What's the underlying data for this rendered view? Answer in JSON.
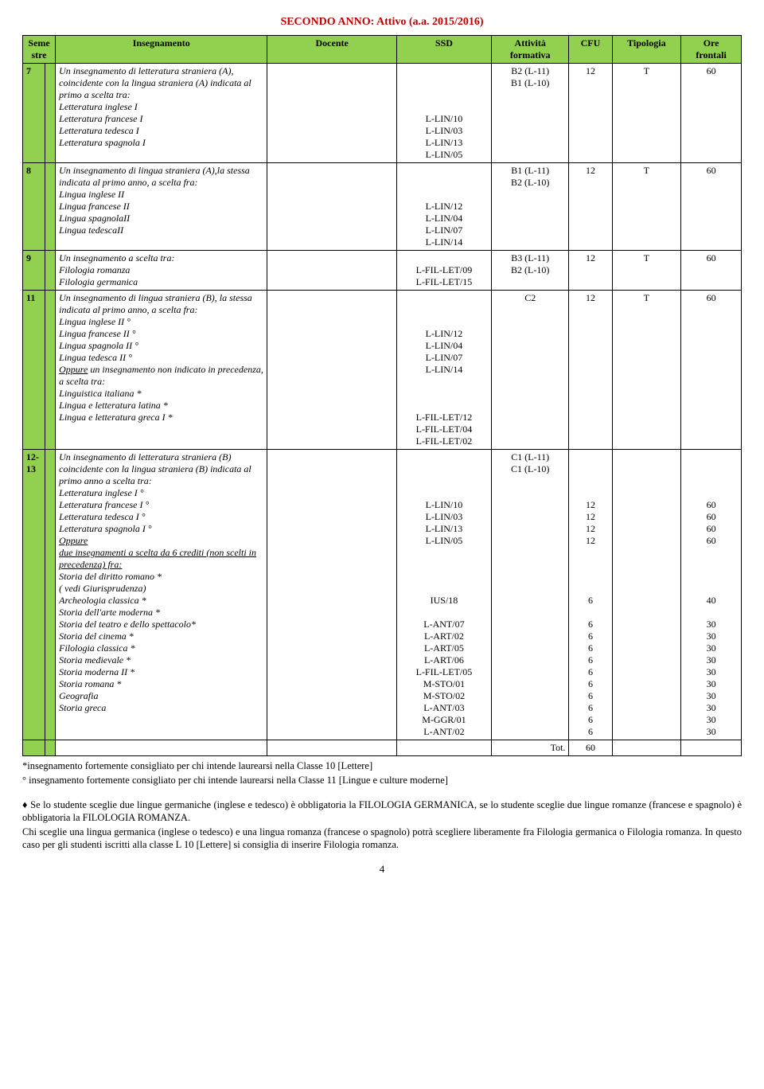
{
  "title": "SECONDO ANNO: Attivo (a.a. 2015/2016)",
  "headers": {
    "seme": "Seme\nstre",
    "insegnamento": "Insegnamento",
    "docente": "Docente",
    "ssd": "SSD",
    "attivita": "Attività\nformativa",
    "cfu": "CFU",
    "tipologia": "Tipologia",
    "ore": "Ore\nfrontali"
  },
  "rows": [
    {
      "idx": "7",
      "ins": "Un insegnamento di letteratura straniera (A), coincidente con la lingua straniera (A) indicata al primo a scelta tra:\nLetteratura inglese I\nLetteratura francese I\nLetteratura tedesca I\nLetteratura spagnola I",
      "ssd": "\n\n\n\nL-LIN/10\nL-LIN/03\nL-LIN/13\nL-LIN/05",
      "att": "B2 (L-11)\nB1 (L-10)",
      "cfu": "12",
      "tip": "T",
      "ore": "60"
    },
    {
      "idx": "8",
      "ins": "Un insegnamento di lingua straniera (A),la stessa indicata al primo anno, a scelta fra:\nLingua inglese II\nLingua francese II\nLingua spagnolaII\nLingua tedescaII",
      "ssd": "\n\n\nL-LIN/12\nL-LIN/04\nL-LIN/07\nL-LIN/14",
      "att": "B1 (L-11)\nB2 (L-10)",
      "cfu": "12",
      "tip": "T",
      "ore": "60"
    },
    {
      "idx": "9",
      "ins": "Un insegnamento a scelta tra:\nFilologia romanza\nFilologia germanica",
      "ssd": "\nL-FIL-LET/09\nL-FIL-LET/15",
      "att": "B3 (L-11)\nB2 (L-10)",
      "cfu": "12",
      "tip": "T",
      "ore": "60"
    },
    {
      "idx": "11",
      "ins": "Un insegnamento di lingua straniera (B), la stessa indicata al primo anno, a scelta fra:\nLingua inglese II °\nLingua francese II °\nLingua spagnola II °\nLingua tedesca II °\n<u>Oppure</u> un insegnamento non indicato in precedenza, a scelta tra:\nLinguistica italiana *\nLingua e letteratura latina *\nLingua e letteratura greca I *",
      "ssd": "\n\n\nL-LIN/12\nL-LIN/04\nL-LIN/07\nL-LIN/14\n\n\n\nL-FIL-LET/12\nL-FIL-LET/04\nL-FIL-LET/02",
      "att": "C2",
      "cfu": "12",
      "tip": "T",
      "ore": "60"
    },
    {
      "idx": "12-\n13",
      "ins": "Un insegnamento di letteratura straniera (B) coincidente con la lingua straniera (B) indicata al primo anno a scelta tra:\nLetteratura inglese I °\nLetteratura francese I °\nLetteratura tedesca I °\nLetteratura spagnola I °\n<u>Oppure</u>\n<u>due insegnamenti a scelta da 6 crediti (non scelti in precedenza) fra:</u>\nStoria del diritto romano *\n( vedi Giurisprudenza)\nArcheologia classica *\nStoria dell'arte moderna *\nStoria del teatro e dello spettacolo*\nStoria del cinema *\nFilologia classica *\nStoria medievale *\nStoria moderna II *\nStoria romana *\nGeografia\nStoria greca",
      "ssd": "\n\n\n\nL-LIN/10\nL-LIN/03\nL-LIN/13\nL-LIN/05\n\n\n\n\nIUS/18\n\nL-ANT/07\nL-ART/02\nL-ART/05\nL-ART/06\nL-FIL-LET/05\nM-STO/01\nM-STO/02\nL-ANT/03\nM-GGR/01\nL-ANT/02",
      "att": "C1 (L-11)\nC1 (L-10)",
      "cfu": "\n\n\n\n12\n12\n12\n12\n\n\n\n\n6\n\n6\n6\n6\n6\n6\n6\n6\n6\n6\n6",
      "tip": "",
      "ore": "\n\n\n\n60\n60\n60\n60\n\n\n\n\n40\n\n30\n30\n30\n30\n30\n30\n30\n30\n30\n30"
    }
  ],
  "totRow": {
    "label": "Tot.",
    "value": "60"
  },
  "footnotes": {
    "p1": "*insegnamento fortemente consigliato per chi intende laurearsi nella Classe 10 [Lettere]",
    "p2": "° insegnamento fortemente consigliato per chi intende laurearsi nella Classe 11 [Lingue e culture moderne]",
    "p3": "♦ Se lo studente sceglie due lingue germaniche (inglese e tedesco) è obbligatoria la FILOLOGIA GERMANICA, se lo studente sceglie due lingue romanze (francese e spagnolo) è obbligatoria la FILOLOGIA ROMANZA.",
    "p4": "Chi sceglie una lingua germanica (inglese o tedesco) e una lingua romanza (francese o spagnolo) potrà scegliere liberamente fra Filologia germanica o Filologia romanza. In questo caso per gli studenti iscritti alla classe L 10 [Lettere] si consiglia di inserire Filologia romanza."
  },
  "pageNumber": "4",
  "colWidths": {
    "idx": 26,
    "sub": 12,
    "ins": 246,
    "doc": 150,
    "ssd": 110,
    "att": 90,
    "cfu": 50,
    "tip": 80,
    "ore": 70
  }
}
